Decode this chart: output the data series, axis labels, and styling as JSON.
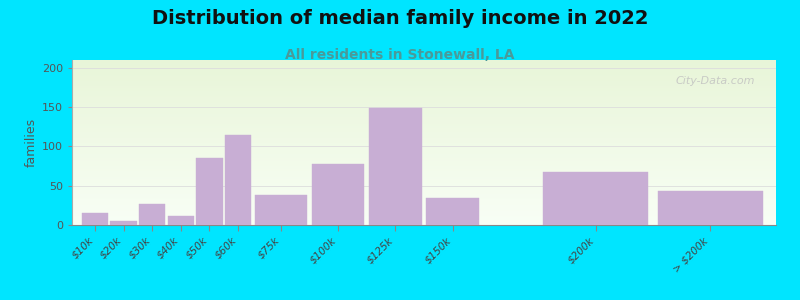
{
  "title": "Distribution of median family income in 2022",
  "subtitle": "All residents in Stonewall, LA",
  "ylabel": "families",
  "categories": [
    "$10k",
    "$20k",
    "$30k",
    "$40k",
    "$50k",
    "$60k",
    "$75k",
    "$100k",
    "$125k",
    "$150k",
    "$200k",
    "> $200k"
  ],
  "values": [
    15,
    5,
    27,
    12,
    85,
    115,
    38,
    78,
    149,
    35,
    68,
    43
  ],
  "x_positions": [
    0,
    1,
    2,
    3,
    4,
    5,
    6,
    8,
    10,
    12,
    16,
    20
  ],
  "bar_widths": [
    1,
    1,
    1,
    1,
    1,
    1,
    2,
    2,
    2,
    2,
    4,
    4
  ],
  "bar_color": "#c8aed4",
  "bar_edge_color": "#c8aed4",
  "bg_outer": "#00e5ff",
  "bg_top_color": "#e8f5d8",
  "bg_bottom_color": "#f8fef5",
  "title_fontsize": 14,
  "subtitle_fontsize": 10,
  "subtitle_color": "#4a9a9a",
  "ylabel_color": "#555555",
  "yticks": [
    0,
    50,
    100,
    150,
    200
  ],
  "ylim": [
    0,
    210
  ],
  "grid_color": "#dddddd",
  "watermark": "City-Data.com"
}
